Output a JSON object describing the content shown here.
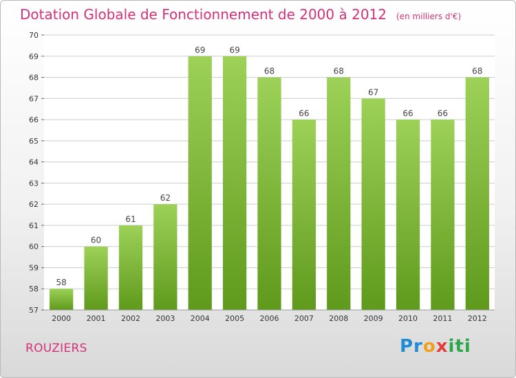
{
  "title": "Dotation Globale de Fonctionnement de 2000 à 2012",
  "title_unit": "(en milliers d'€)",
  "commune": "ROUZIERS",
  "logo": {
    "parts": [
      "Pr",
      "o",
      "x",
      "iti"
    ]
  },
  "colors": {
    "title": "#d4317a",
    "bar_top": "#9dd158",
    "bar_bottom": "#5f9a1c",
    "plot_bg": "#ffffff",
    "grid": "#cccccc"
  },
  "chart_data": {
    "type": "bar",
    "categories": [
      "2000",
      "2001",
      "2002",
      "2003",
      "2004",
      "2005",
      "2006",
      "2007",
      "2008",
      "2009",
      "2010",
      "2011",
      "2012"
    ],
    "values": [
      58,
      60,
      61,
      62,
      69,
      69,
      68,
      66,
      68,
      67,
      66,
      66,
      68
    ],
    "ylim": [
      57,
      70
    ],
    "yticks": [
      57,
      58,
      59,
      60,
      61,
      62,
      63,
      64,
      65,
      66,
      67,
      68,
      69,
      70
    ],
    "grid": true,
    "data_labels": true
  }
}
